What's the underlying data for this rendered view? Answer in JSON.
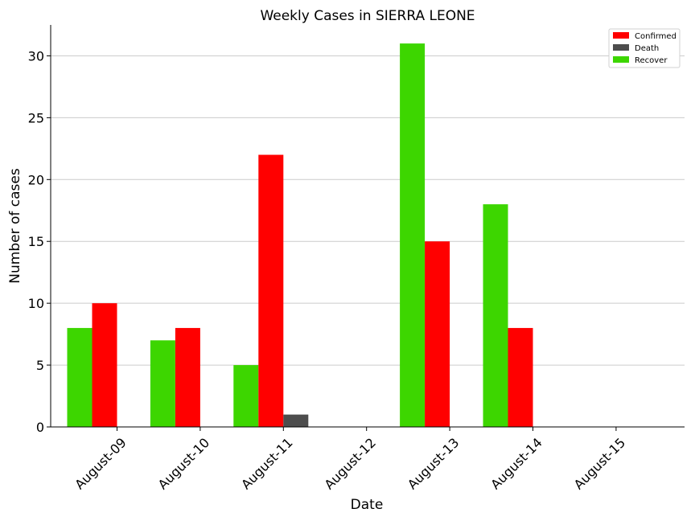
{
  "chart_data": {
    "type": "bar",
    "title": "Weekly Cases in SIERRA LEONE",
    "xlabel": "Date",
    "ylabel": "Number of cases",
    "categories": [
      "August-09",
      "August-10",
      "August-11",
      "August-12",
      "August-13",
      "August-14",
      "August-15"
    ],
    "series": [
      {
        "name": "Recover",
        "color": "#3dd600",
        "values": [
          8,
          7,
          5,
          0,
          31,
          18,
          0
        ]
      },
      {
        "name": "Confirmed",
        "color": "#ff0000",
        "values": [
          10,
          8,
          22,
          0,
          15,
          8,
          0
        ]
      },
      {
        "name": "Death",
        "color": "#4d4d4d",
        "values": [
          0,
          0,
          1,
          0,
          0,
          0,
          0
        ]
      }
    ],
    "legend": {
      "placement": "top-right",
      "order": [
        "Confirmed",
        "Death",
        "Recover"
      ]
    },
    "ylim": [
      0,
      32.5
    ],
    "yticks": [
      0,
      5,
      10,
      15,
      20,
      25,
      30
    ],
    "grid": "horizontal"
  }
}
